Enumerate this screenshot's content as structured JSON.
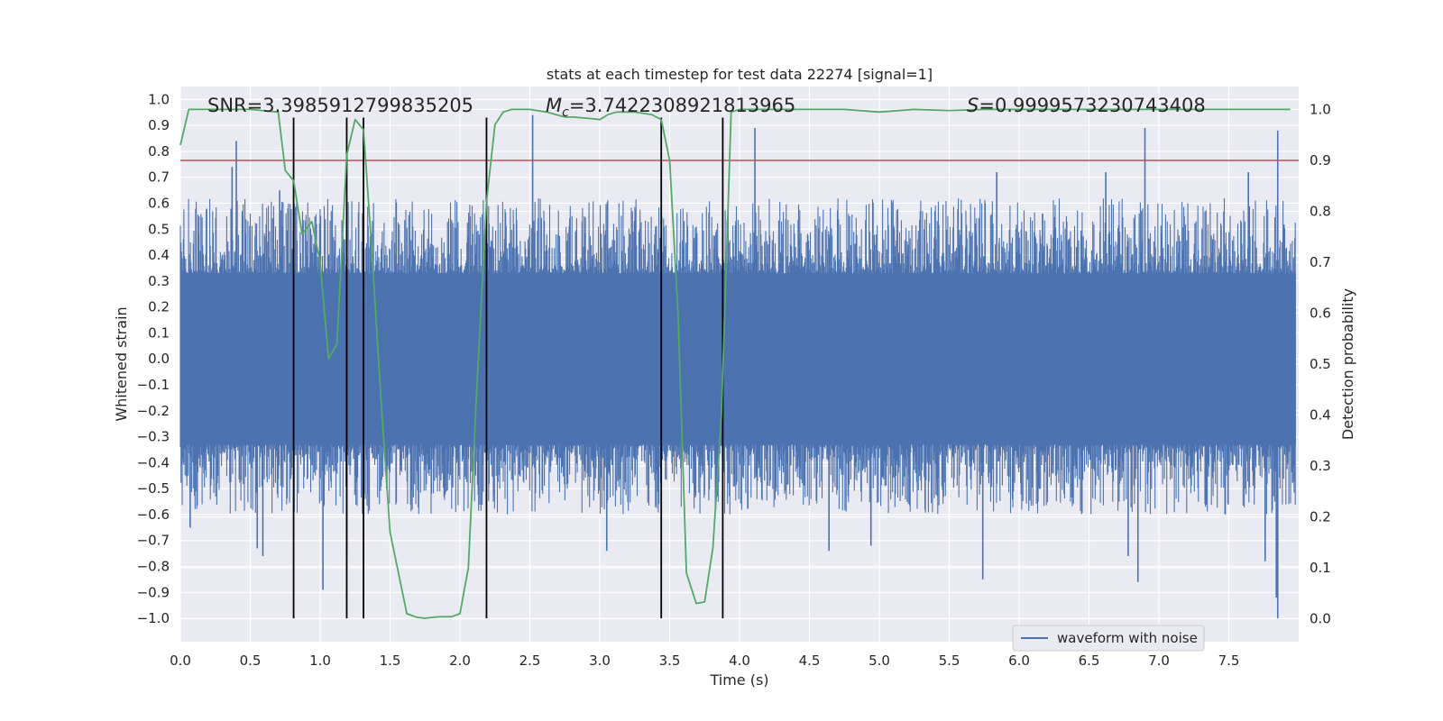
{
  "chart_data": {
    "type": "line",
    "title": "stats at each timestep for test data 22274 [signal=1]",
    "xlabel": "Time (s)",
    "ylabel": "Whitened strain",
    "y2label": "Detection probability",
    "xlim": [
      0.0,
      8.0
    ],
    "ylim": [
      -1.09,
      1.05
    ],
    "y2lim": [
      -0.045,
      1.045
    ],
    "x_ticks": [
      "0.0",
      "0.5",
      "1.0",
      "1.5",
      "2.0",
      "2.5",
      "3.0",
      "3.5",
      "4.0",
      "4.5",
      "5.0",
      "5.5",
      "6.0",
      "6.5",
      "7.0",
      "7.5"
    ],
    "y_ticks": [
      "1.0",
      "0.9",
      "0.8",
      "0.7",
      "0.6",
      "0.5",
      "0.4",
      "0.3",
      "0.2",
      "0.1",
      "0.0",
      "−0.1",
      "−0.2",
      "−0.3",
      "−0.4",
      "−0.5",
      "−0.6",
      "−0.7",
      "−0.8",
      "−0.9",
      "−1.0"
    ],
    "y2_ticks": [
      "1.0",
      "0.9",
      "0.8",
      "0.7",
      "0.6",
      "0.5",
      "0.4",
      "0.3",
      "0.2",
      "0.1",
      "0.0"
    ],
    "annotations": {
      "snr": "SNR=3.3985912799835205",
      "mc_symbol": "M",
      "mc_sub": "c",
      "mc_value": "=3.7422308921813965",
      "s_symbol": "S",
      "s_value": "=0.9999573230743408"
    },
    "legend": {
      "label": "waveform with noise",
      "location": "lower-right"
    },
    "threshold_line": {
      "axis": "right",
      "value": 0.9,
      "color": "#c44e52"
    },
    "vertical_lines": {
      "x": [
        0.81,
        1.19,
        1.31,
        2.19,
        3.44,
        3.88
      ],
      "y_range": [
        -1.0,
        0.93
      ],
      "color": "#000000"
    },
    "waveform": {
      "name": "waveform with noise",
      "color": "#4c72b0",
      "envelope": 0.33,
      "typical_peak": 0.5,
      "spikes": [
        {
          "x": 0.4,
          "y": 0.84
        },
        {
          "x": 0.37,
          "y": 0.74
        },
        {
          "x": 0.71,
          "y": 0.65
        },
        {
          "x": 1.02,
          "y": -0.89
        },
        {
          "x": 1.19,
          "y": -0.75
        },
        {
          "x": 2.52,
          "y": 0.94
        },
        {
          "x": 4.11,
          "y": 0.89
        },
        {
          "x": 5.74,
          "y": -0.85
        },
        {
          "x": 6.85,
          "y": -0.86
        },
        {
          "x": 6.9,
          "y": 0.89
        },
        {
          "x": 7.85,
          "y": 0.88
        },
        {
          "x": 7.85,
          "y": -1.0
        },
        {
          "x": 7.84,
          "y": -0.92
        },
        {
          "x": 0.07,
          "y": -0.65
        },
        {
          "x": 0.55,
          "y": -0.73
        },
        {
          "x": 0.59,
          "y": -0.76
        },
        {
          "x": 4.64,
          "y": -0.74
        },
        {
          "x": 7.76,
          "y": -0.78
        },
        {
          "x": 7.64,
          "y": 0.72
        },
        {
          "x": 6.62,
          "y": 0.72
        },
        {
          "x": 5.84,
          "y": 0.72
        },
        {
          "x": 3.05,
          "y": -0.74
        },
        {
          "x": 4.94,
          "y": -0.72
        },
        {
          "x": 6.78,
          "y": -0.76
        }
      ]
    },
    "series": [
      {
        "name": "Detection probability",
        "axis": "right",
        "color": "#55a868",
        "x": [
          0.0,
          0.06,
          0.12,
          0.25,
          0.5,
          0.7,
          0.75,
          0.81,
          0.87,
          0.94,
          1.0,
          1.06,
          1.12,
          1.19,
          1.25,
          1.31,
          1.37,
          1.44,
          1.5,
          1.62,
          1.69,
          1.75,
          1.81,
          1.87,
          1.94,
          2.0,
          2.06,
          2.12,
          2.19,
          2.25,
          2.31,
          2.37,
          2.44,
          2.5,
          2.62,
          2.75,
          2.81,
          2.94,
          3.0,
          3.06,
          3.12,
          3.25,
          3.37,
          3.44,
          3.5,
          3.56,
          3.62,
          3.69,
          3.75,
          3.81,
          3.87,
          3.94,
          4.0,
          4.25,
          4.5,
          4.75,
          5.0,
          5.25,
          5.5,
          5.75,
          6.0,
          6.5,
          7.0,
          7.5,
          7.94
        ],
        "values": [
          0.93,
          1.0,
          1.0,
          1.0,
          1.0,
          0.995,
          0.88,
          0.86,
          0.755,
          0.78,
          0.7,
          0.51,
          0.54,
          0.91,
          0.98,
          0.96,
          0.72,
          0.41,
          0.17,
          0.01,
          0.003,
          0.001,
          0.003,
          0.004,
          0.004,
          0.01,
          0.1,
          0.45,
          0.82,
          0.97,
          0.995,
          1.0,
          1.0,
          1.0,
          0.995,
          0.985,
          0.985,
          0.982,
          0.98,
          0.99,
          0.995,
          0.995,
          0.99,
          0.98,
          0.9,
          0.6,
          0.09,
          0.03,
          0.033,
          0.14,
          0.4,
          0.995,
          1.0,
          1.0,
          1.0,
          1.0,
          0.995,
          1.0,
          0.998,
          1.0,
          1.0,
          1.0,
          1.0,
          1.0,
          1.0
        ]
      }
    ]
  }
}
